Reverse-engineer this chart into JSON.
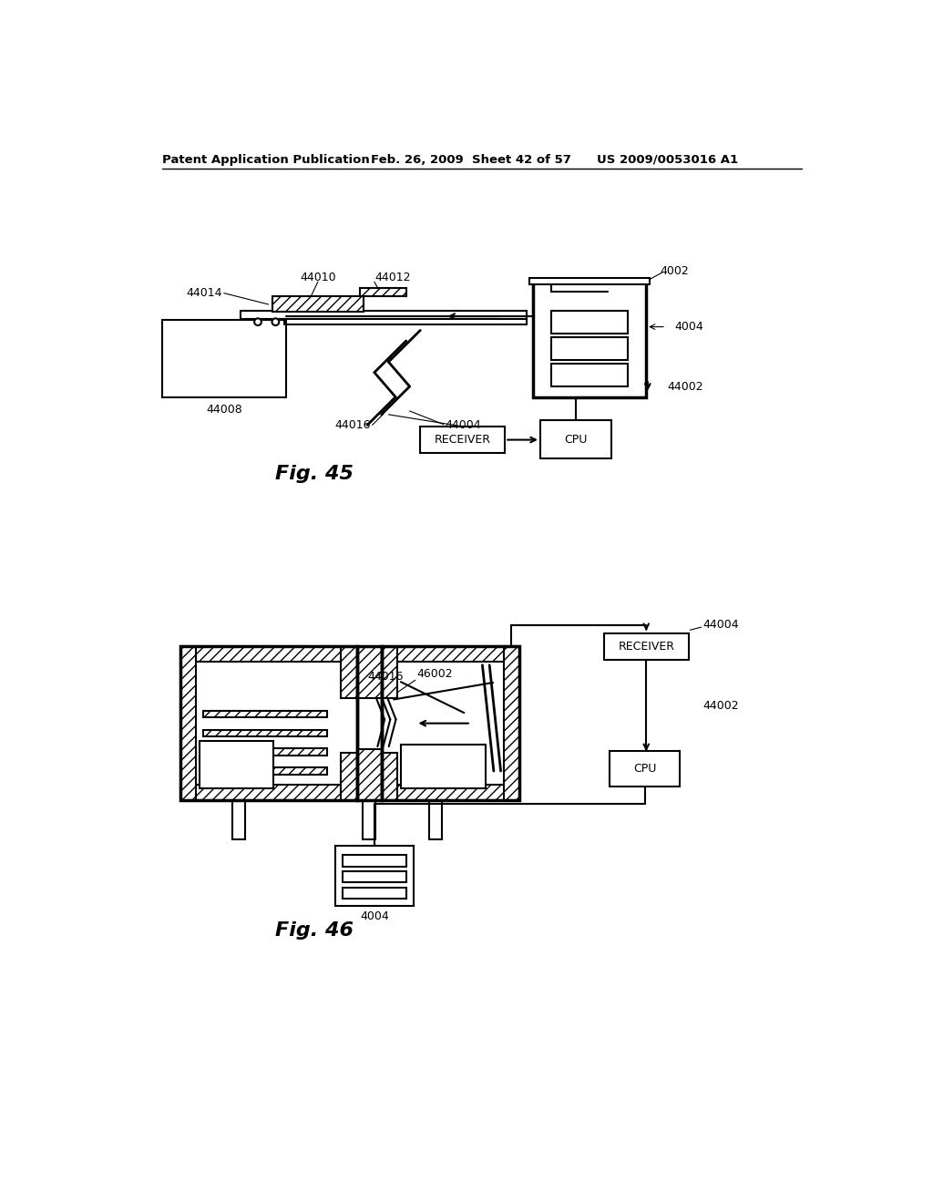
{
  "bg_color": "#ffffff",
  "header_text": "Patent Application Publication",
  "header_date": "Feb. 26, 2009  Sheet 42 of 57",
  "header_patent": "US 2009/0053016 A1",
  "fig45_label": "Fig. 45",
  "fig46_label": "Fig. 46"
}
